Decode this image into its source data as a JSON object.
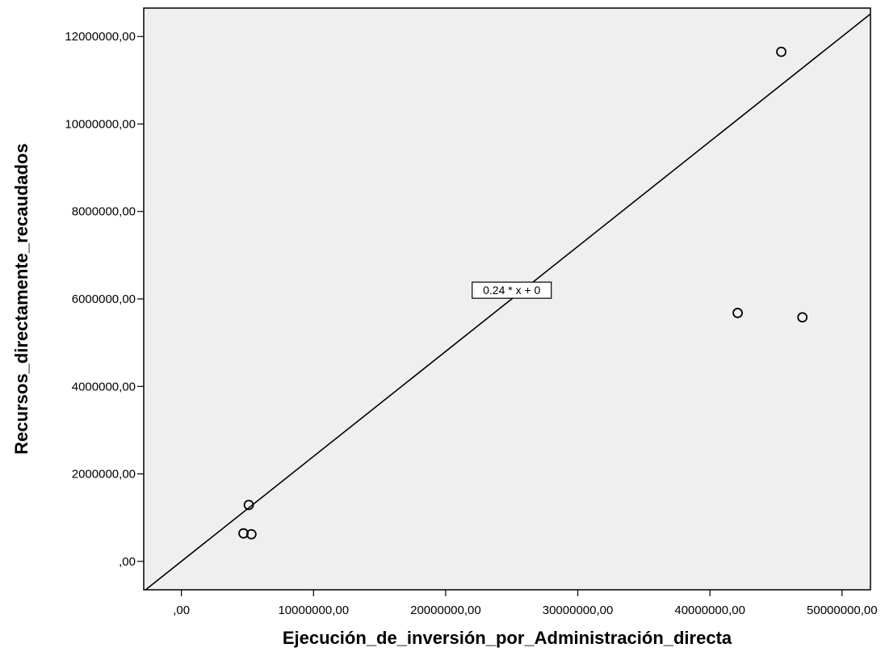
{
  "chart_data": {
    "type": "scatter",
    "xlabel": "Ejecución_de_inversión_por_Administración_directa",
    "ylabel": "Recursos_directamente_recaudados",
    "xlim": [
      -2850000,
      52150000
    ],
    "ylim": [
      -650000,
      12650000
    ],
    "x_ticks": [
      0,
      10000000,
      20000000,
      30000000,
      40000000,
      50000000
    ],
    "x_tick_labels": [
      ",00",
      "10000000,00",
      "20000000,00",
      "30000000,00",
      "40000000,00",
      "50000000,00"
    ],
    "y_ticks": [
      0,
      2000000,
      4000000,
      6000000,
      8000000,
      10000000,
      12000000
    ],
    "y_tick_labels": [
      ",00",
      "2000000,00",
      "4000000,00",
      "6000000,00",
      "8000000,00",
      "10000000,00",
      "12000000,00"
    ],
    "grid": false,
    "background": "#efefef",
    "points": [
      {
        "x": 4700000,
        "y": 640000
      },
      {
        "x": 5300000,
        "y": 620000
      },
      {
        "x": 5100000,
        "y": 1290000
      },
      {
        "x": 42100000,
        "y": 5680000
      },
      {
        "x": 45400000,
        "y": 11650000
      },
      {
        "x": 47000000,
        "y": 5580000
      }
    ],
    "fit_line": {
      "slope": 0.24,
      "intercept": 0,
      "label": "0.24 * x + 0",
      "label_x": 25000000,
      "label_y": 6200000
    }
  }
}
